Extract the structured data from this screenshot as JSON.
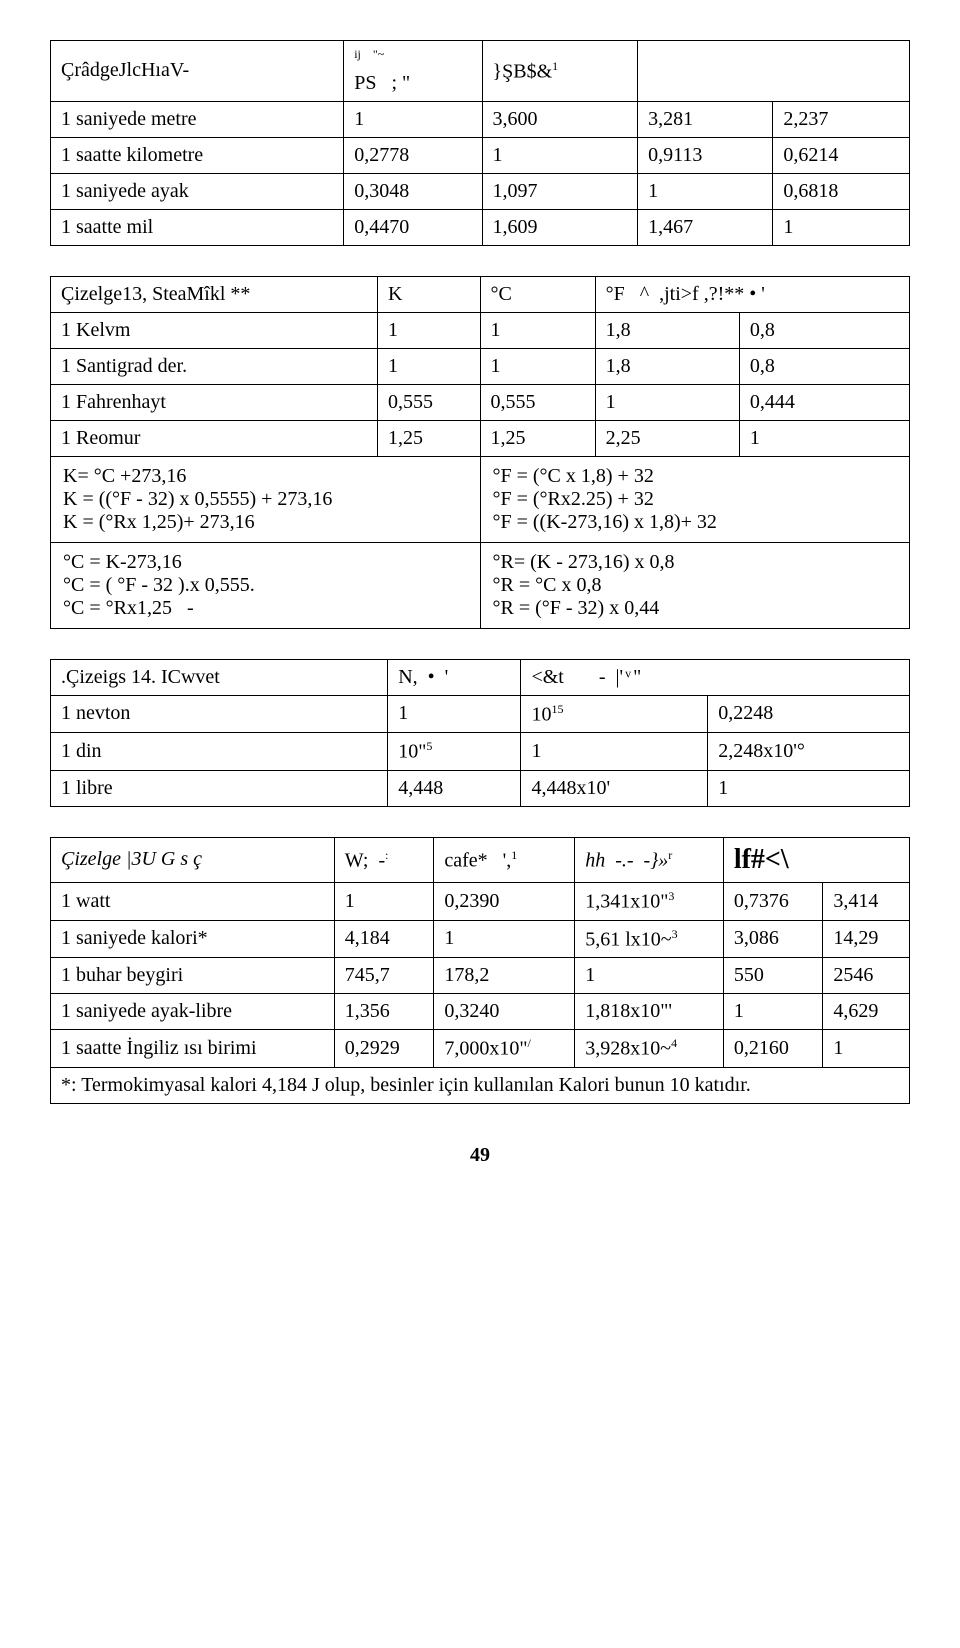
{
  "table1": {
    "header": [
      "ÇrâdgeJlcHıaV-",
      "PS   ; \"",
      "}ŞB$&",
      ""
    ],
    "header_sup": [
      "",
      "ij    \"~",
      "1",
      ""
    ],
    "rows": [
      [
        "1 saniyede metre",
        "1",
        "3,600",
        "3,281",
        "2,237"
      ],
      [
        "1 saatte kilometre",
        "0,2778",
        "1",
        "0,9113",
        "0,6214"
      ],
      [
        "1 saniyede ayak",
        "0,3048",
        "1,097",
        "1",
        "0,6818"
      ],
      [
        "1 saatte mil",
        "0,4470",
        "1,609",
        "1,467",
        "1"
      ]
    ]
  },
  "table2": {
    "title": "Çizelge13, SteaMîkl **",
    "cols": [
      "K",
      "°C",
      "°F   ^  ,jti>f ,?!** • '"
    ],
    "rows": [
      [
        "1 Kelvm",
        "1",
        "1",
        "1,8",
        "0,8"
      ],
      [
        "1 Santigrad der.",
        "1",
        "1",
        "1,8",
        "0,8"
      ],
      [
        "1 Fahrenhayt",
        "0,555",
        "0,555",
        "1",
        "0,444"
      ],
      [
        "1 Reomur",
        "1,25",
        "1,25",
        "2,25",
        "1"
      ]
    ],
    "formulas_left": [
      "K= °C +273,16",
      "K = ((°F - 32) x 0,5555) + 273,16",
      "K = (°Rx 1,25)+ 273,16"
    ],
    "formulas_right": [
      "°F = (°C x 1,8) + 32",
      "°F = (°Rx2.25) + 32",
      "°F = ((K-273,16) x 1,8)+ 32"
    ],
    "formulas2_left": [
      "°C = K-273,16",
      "°C = ( °F - 32 ).x 0,555.",
      "°C = °Rx1,25   -"
    ],
    "formulas2_right": [
      "°R= (K - 273,16) x 0,8",
      "°R = °C x 0,8",
      "°R = (°F - 32) x 0,44"
    ]
  },
  "table3": {
    "title": ".Çizeigs 14. ICwvet",
    "cols": [
      "N,  •  '",
      "<&t       -  |' ͮ \""
    ],
    "rows": [
      [
        "1 nevton",
        "1",
        "10",
        "0,2248"
      ],
      [
        "1 din",
        "10\"",
        "1",
        "2,248x10'°"
      ],
      [
        "1 libre",
        "4,448",
        "4,448x10'",
        "1"
      ]
    ],
    "row_sup": [
      "",
      "",
      "15",
      ""
    ],
    "row2_sup": [
      "",
      "5",
      "",
      ""
    ]
  },
  "table4": {
    "title": "Çizelge |3U G s ç",
    "cols": [
      "W;  -",
      "cafe*   ',",
      "hh  -.-  -}»",
      "lf#<\\"
    ],
    "col_sup": [
      ":",
      "1",
      "r",
      ""
    ],
    "rows": [
      [
        "1 watt",
        "1",
        "0,2390",
        "1,341x10\"",
        "0,7376",
        "3,414"
      ],
      [
        "1 saniyede kalori*",
        "4,184",
        "1",
        "5,61 lx10~",
        "3,086",
        "14,29"
      ],
      [
        "1 buhar beygiri",
        "745,7",
        "178,2",
        "1",
        "550",
        "2546"
      ],
      [
        "1 saniyede ayak-libre",
        "1,356",
        "0,3240",
        "1,818x10\"'",
        "1",
        "4,629"
      ],
      [
        "1 saatte İngiliz ısı birimi",
        "0,2929",
        "7,000x10\"",
        "3,928x10~",
        "0,2160",
        "1"
      ]
    ],
    "row1_sup": [
      "",
      "",
      "",
      "3",
      "",
      ""
    ],
    "row2_sup": [
      "",
      "",
      "",
      "3",
      "",
      ""
    ],
    "row5_sup": [
      "",
      "",
      "/",
      "4",
      "",
      ""
    ],
    "footnote": "*: Termokimyasal kalori 4,184 J olup, besinler için kullanılan Kalori bunun 10 katıdır."
  },
  "page_number": "49"
}
